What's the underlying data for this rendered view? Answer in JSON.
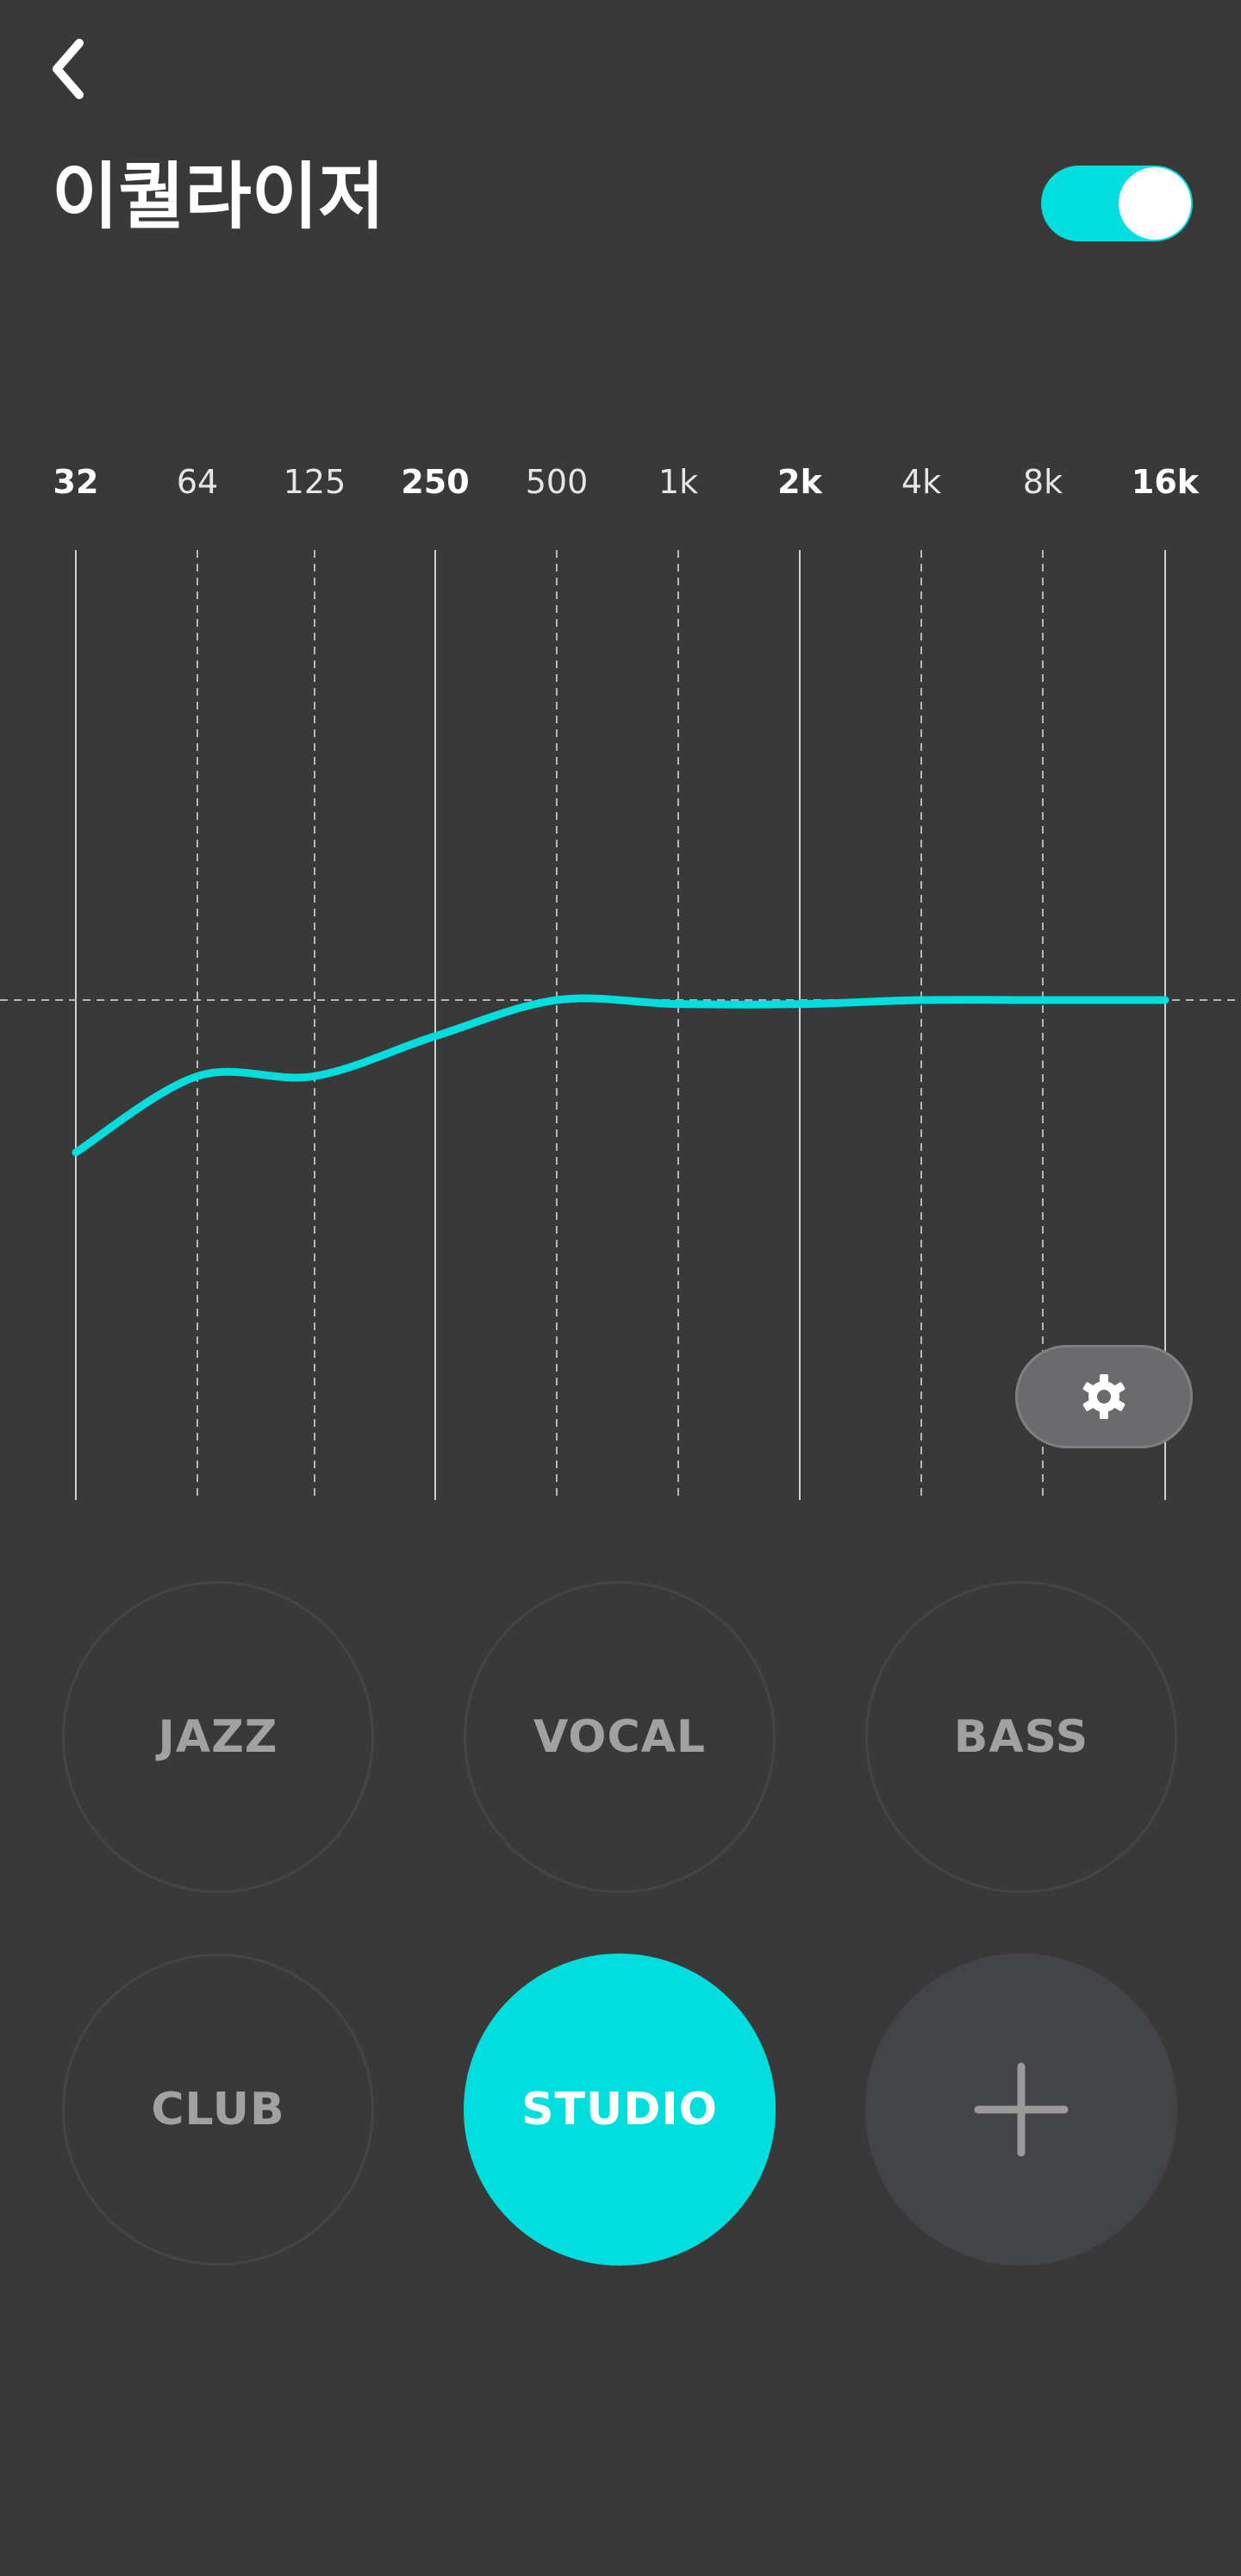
{
  "header": {
    "title": "이퀄라이저",
    "back_icon": "chevron-left-icon",
    "toggle_on": true
  },
  "colors": {
    "background": "#393939",
    "accent": "#00dedd",
    "grid": "#bdbdbd",
    "preset_text": "#a1a1a1",
    "add_button": "#424447"
  },
  "chart_data": {
    "type": "line",
    "x": [
      "32",
      "64",
      "125",
      "250",
      "500",
      "1k",
      "2k",
      "4k",
      "8k",
      "16k"
    ],
    "bold_labels": [
      "32",
      "250",
      "2k",
      "16k"
    ],
    "ylim": [
      -12,
      12
    ],
    "series": [
      {
        "values": [
          -3.8,
          -1.9,
          -1.9,
          -0.9,
          0.0,
          -0.1,
          -0.1,
          0.0,
          0.0,
          0.0
        ]
      }
    ],
    "grid": true
  },
  "settings_button": {
    "icon": "gear-icon"
  },
  "presets": [
    {
      "label": "JAZZ",
      "active": false
    },
    {
      "label": "VOCAL",
      "active": false
    },
    {
      "label": "BASS",
      "active": false
    },
    {
      "label": "CLUB",
      "active": false
    },
    {
      "label": "STUDIO",
      "active": true
    }
  ],
  "add_preset": {
    "icon": "plus-icon"
  }
}
